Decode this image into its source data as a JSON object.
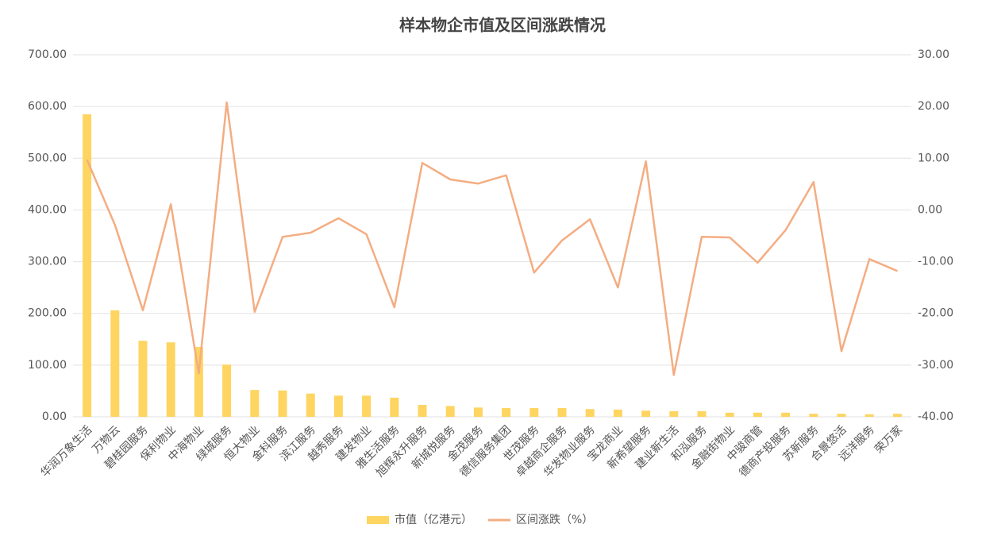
{
  "chart_data": {
    "type": "bar",
    "title": "样本物企市值及区间涨跌情况",
    "categories": [
      "华润万象生活",
      "万物云",
      "碧桂园服务",
      "保利物业",
      "中海物业",
      "绿城服务",
      "恒大物业",
      "金科服务",
      "滨江服务",
      "越秀服务",
      "建发物业",
      "雅生活服务",
      "旭辉永升服务",
      "新城悦服务",
      "金茂服务",
      "德信服务集团",
      "世茂服务",
      "卓越商企服务",
      "华发物业服务",
      "宝龙商业",
      "新希望服务",
      "建业新生活",
      "和泓服务",
      "金融街物业",
      "中骏商管",
      "德商产投服务",
      "苏新服务",
      "合景悠活",
      "远洋服务",
      "荣万家"
    ],
    "series": [
      {
        "name": "市值（亿港元）",
        "type": "bar",
        "axis": "y",
        "color": "#fdd560",
        "values": [
          585,
          206,
          147,
          144,
          135,
          101,
          52,
          51,
          45,
          41,
          41,
          37,
          23,
          21,
          18,
          17,
          17,
          17,
          15,
          14,
          12,
          11,
          11,
          8,
          8,
          8,
          6,
          6,
          5,
          6
        ]
      },
      {
        "name": "区间涨跌（%）",
        "type": "line",
        "axis": "y2",
        "color": "#f4ad82",
        "values": [
          9.7,
          -2.9,
          -19.4,
          1.1,
          -31.6,
          20.8,
          -19.7,
          -5.2,
          -4.4,
          -1.6,
          -4.7,
          -18.8,
          9.1,
          5.9,
          5.1,
          6.7,
          -12.1,
          -5.9,
          -1.8,
          -15.0,
          9.4,
          -31.9,
          -5.2,
          -5.3,
          -10.2,
          -3.9,
          5.4,
          -27.3,
          -9.5,
          -11.8
        ]
      }
    ],
    "ylim": [
      0,
      700
    ],
    "yticks": [
      {
        "value": 0,
        "label": "0.00"
      },
      {
        "value": 100,
        "label": "100.00"
      },
      {
        "value": 200,
        "label": "200.00"
      },
      {
        "value": 300,
        "label": "300.00"
      },
      {
        "value": 400,
        "label": "400.00"
      },
      {
        "value": 500,
        "label": "500.00"
      },
      {
        "value": 600,
        "label": "600.00"
      },
      {
        "value": 700,
        "label": "700.00"
      }
    ],
    "y2lim": [
      -40,
      30
    ],
    "y2ticks": [
      {
        "value": -40,
        "label": "-40.00"
      },
      {
        "value": -30,
        "label": "-30.00"
      },
      {
        "value": -20,
        "label": "-20.00"
      },
      {
        "value": -10,
        "label": "-10.00"
      },
      {
        "value": 0,
        "label": "0.00"
      },
      {
        "value": 10,
        "label": "10.00"
      },
      {
        "value": 20,
        "label": "20.00"
      },
      {
        "value": 30,
        "label": "30.00"
      }
    ],
    "grid": true,
    "legend": "bottom"
  }
}
